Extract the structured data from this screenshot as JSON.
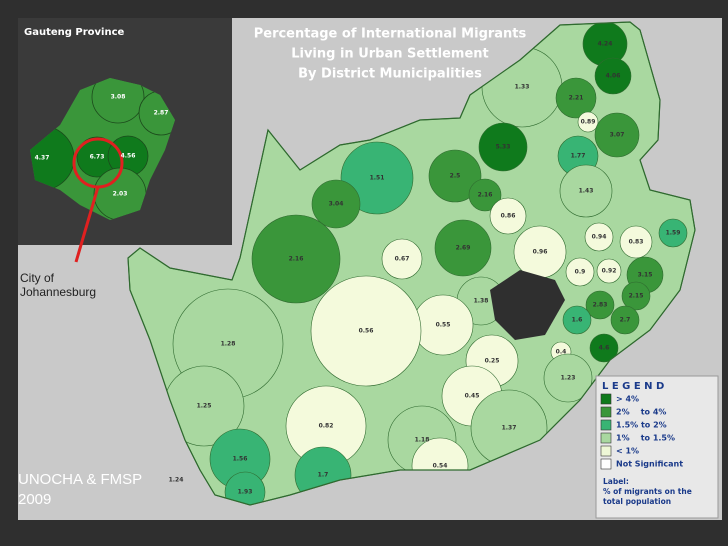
{
  "title": [
    "Percentage of International Migrants",
    "Living in Urban Settlement",
    "By District Municipalities"
  ],
  "inset": {
    "title": "Gauteng Province",
    "callout": "City of Johannesburg",
    "districts": [
      {
        "label": "3.08",
        "color": "#3a963a"
      },
      {
        "label": "2.87",
        "color": "#3a963a"
      },
      {
        "label": "4.37",
        "color": "#0f7a1c"
      },
      {
        "label": "6.73",
        "color": "#0f7a1c"
      },
      {
        "label": "4.56",
        "color": "#0f7a1c"
      },
      {
        "label": "2.03",
        "color": "#3a963a"
      }
    ]
  },
  "districts": [
    {
      "label": "4.24",
      "color": "#0f7a1c"
    },
    {
      "label": "4.06",
      "color": "#0f7a1c"
    },
    {
      "label": "1.33",
      "color": "#a9d8a0"
    },
    {
      "label": "2.21",
      "color": "#3a963a"
    },
    {
      "label": "0.89",
      "color": "#f4fadc"
    },
    {
      "label": "3.07",
      "color": "#3a963a"
    },
    {
      "label": "5.33",
      "color": "#0f7a1c"
    },
    {
      "label": "1.77",
      "color": "#38b474"
    },
    {
      "label": "1.51",
      "color": "#38b474"
    },
    {
      "label": "2.5",
      "color": "#3a963a"
    },
    {
      "label": "2.16",
      "color": "#3a963a"
    },
    {
      "label": "1.43",
      "color": "#a9d8a0"
    },
    {
      "label": "3.04",
      "color": "#3a963a"
    },
    {
      "label": "0.86",
      "color": "#f4fadc"
    },
    {
      "label": "1.59",
      "color": "#38b474"
    },
    {
      "label": "0.94",
      "color": "#f4fadc"
    },
    {
      "label": "0.83",
      "color": "#f4fadc"
    },
    {
      "label": "2.69",
      "color": "#3a963a"
    },
    {
      "label": "0.96",
      "color": "#f4fadc"
    },
    {
      "label": "2.16",
      "color": "#3a963a"
    },
    {
      "label": "0.67",
      "color": "#f4fadc"
    },
    {
      "label": "0.9",
      "color": "#f4fadc"
    },
    {
      "label": "0.92",
      "color": "#f4fadc"
    },
    {
      "label": "3.15",
      "color": "#3a963a"
    },
    {
      "label": "1.38",
      "color": "#a9d8a0"
    },
    {
      "label": "2.83",
      "color": "#3a963a"
    },
    {
      "label": "2.15",
      "color": "#3a963a"
    },
    {
      "label": "1.6",
      "color": "#38b474"
    },
    {
      "label": "2.7",
      "color": "#3a963a"
    },
    {
      "label": "0.55",
      "color": "#f4fadc"
    },
    {
      "label": "0.56",
      "color": "#f4fadc"
    },
    {
      "label": "1.28",
      "color": "#a9d8a0"
    },
    {
      "label": "0.4",
      "color": "#f4fadc"
    },
    {
      "label": "4.6",
      "color": "#0f7a1c"
    },
    {
      "label": "0.25",
      "color": "#f4fadc"
    },
    {
      "label": "1.23",
      "color": "#a9d8a0"
    },
    {
      "label": "0.45",
      "color": "#f4fadc"
    },
    {
      "label": "1.25",
      "color": "#a9d8a0"
    },
    {
      "label": "0.82",
      "color": "#f4fadc"
    },
    {
      "label": "1.37",
      "color": "#a9d8a0"
    },
    {
      "label": "1.18",
      "color": "#a9d8a0"
    },
    {
      "label": "1.56",
      "color": "#38b474"
    },
    {
      "label": "0.54",
      "color": "#f4fadc"
    },
    {
      "label": "1.24",
      "color": "#a9d8a0"
    },
    {
      "label": "1.7",
      "color": "#38b474"
    },
    {
      "label": "1.93",
      "color": "#38b474"
    }
  ],
  "legend": {
    "title": "L E G E N D",
    "items": [
      {
        "label": "> 4%",
        "color": "#0f7a1c"
      },
      {
        "label": "2%    to 4%",
        "color": "#3a963a"
      },
      {
        "label": "1.5% to 2%",
        "color": "#38b474"
      },
      {
        "label": "1%    to 1.5%",
        "color": "#a9d8a0"
      },
      {
        "label": "< 1%",
        "color": "#eef7d6"
      },
      {
        "label": "Not Significant",
        "color": "#ffffff"
      }
    ],
    "note": [
      "Label:",
      "% of migrants on the",
      "total population"
    ]
  },
  "source": [
    "UNOCHA & FMSP",
    "2009"
  ]
}
